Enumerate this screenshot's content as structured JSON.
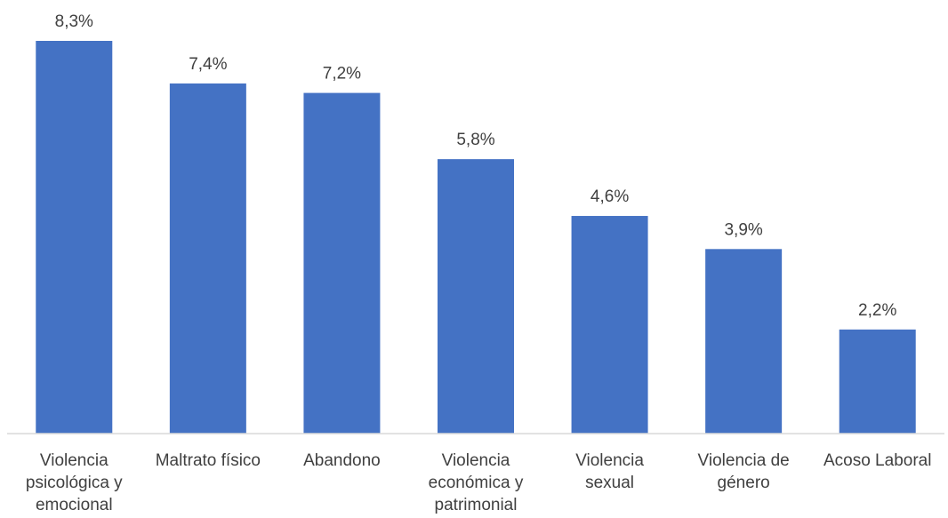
{
  "chart_data": {
    "type": "bar",
    "categories": [
      [
        "Violencia",
        "psicológica y",
        "emocional"
      ],
      [
        "Maltrato físico"
      ],
      [
        "Abandono"
      ],
      [
        "Violencia",
        "económica y",
        "patrimonial"
      ],
      [
        "Violencia",
        "sexual"
      ],
      [
        "Violencia de",
        "género"
      ],
      [
        "Acoso Laboral"
      ]
    ],
    "values": [
      8.3,
      7.4,
      7.2,
      5.8,
      4.6,
      3.9,
      2.2
    ],
    "data_labels": [
      "8,3%",
      "7,4%",
      "7,2%",
      "5,8%",
      "4,6%",
      "3,9%",
      "2,2%"
    ],
    "unit": "%",
    "ylim": [
      0,
      8.3
    ],
    "grid": false,
    "legend": "none",
    "colors": {
      "bar": "#4472C4",
      "axis": "#d9d9d9",
      "text": "#404040"
    }
  }
}
